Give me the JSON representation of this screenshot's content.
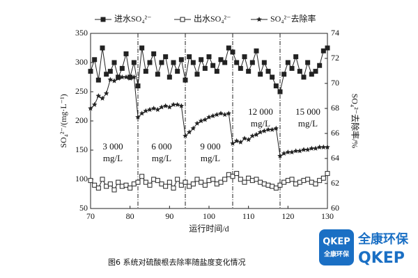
{
  "chart_data": {
    "type": "line",
    "xlabel": "运行时间/d",
    "ylabel": "SO₄²⁻/(mg·L⁻¹)",
    "y2label": "SO₄²⁻去除率/%",
    "x": [
      70,
      71,
      72,
      73,
      74,
      75,
      76,
      77,
      78,
      79,
      80,
      81,
      82,
      83,
      84,
      85,
      86,
      87,
      88,
      89,
      90,
      91,
      92,
      93,
      94,
      95,
      96,
      97,
      98,
      99,
      100,
      101,
      102,
      103,
      104,
      105,
      106,
      107,
      108,
      109,
      110,
      111,
      112,
      113,
      114,
      115,
      116,
      117,
      118,
      119,
      120,
      121,
      122,
      123,
      124,
      125,
      126,
      127,
      128,
      129,
      130
    ],
    "series": [
      {
        "name": "进水SO₄²⁻",
        "color": "#222222",
        "marker": "filled-square",
        "values": [
          285,
          305,
          270,
          325,
          280,
          285,
          300,
          275,
          290,
          315,
          275,
          300,
          260,
          325,
          285,
          300,
          315,
          280,
          300,
          310,
          275,
          300,
          285,
          305,
          270,
          310,
          300,
          280,
          305,
          290,
          310,
          295,
          285,
          305,
          300,
          325,
          318,
          300,
          290,
          310,
          285,
          300,
          320,
          280,
          300,
          285,
          275,
          260,
          250,
          280,
          300,
          290,
          310,
          285,
          275,
          300,
          280,
          285,
          295,
          320,
          325
        ]
      },
      {
        "name": "出水SO₄²⁻",
        "color": "#222222",
        "marker": "open-square",
        "values": [
          98,
          90,
          85,
          100,
          88,
          92,
          82,
          95,
          88,
          90,
          85,
          92,
          95,
          105,
          95,
          90,
          100,
          98,
          92,
          88,
          95,
          85,
          100,
          90,
          95,
          88,
          92,
          100,
          95,
          90,
          98,
          100,
          92,
          95,
          100,
          108,
          105,
          110,
          100,
          95,
          102,
          98,
          100,
          95,
          92,
          90,
          88,
          85,
          90,
          95,
          98,
          100,
          92,
          95,
          98,
          100,
          95,
          92,
          98,
          102,
          110
        ]
      },
      {
        "name": "SO₄²⁻去除率",
        "color": "#222222",
        "marker": "star",
        "axis": "y2",
        "values": [
          68.0,
          68.3,
          69.0,
          68.8,
          69.2,
          70.3,
          70.2,
          70.4,
          70.5,
          70.5,
          70.4,
          70.5,
          67.3,
          67.6,
          67.8,
          67.9,
          68.0,
          67.9,
          68.1,
          68.2,
          68.1,
          68.3,
          68.3,
          68.2,
          65.8,
          66.1,
          66.4,
          66.8,
          67.0,
          67.1,
          67.3,
          67.4,
          67.5,
          67.6,
          67.5,
          67.6,
          65.2,
          65.4,
          65.3,
          65.6,
          65.5,
          65.8,
          65.9,
          66.1,
          66.2,
          66.3,
          66.3,
          66.4,
          64.2,
          64.4,
          64.5,
          64.5,
          64.6,
          64.6,
          64.7,
          64.7,
          64.8,
          64.8,
          64.9,
          64.9,
          64.9
        ]
      }
    ],
    "xlim": [
      70,
      130
    ],
    "xticks": [
      70,
      80,
      90,
      100,
      110,
      120,
      130
    ],
    "ylim": [
      50,
      350
    ],
    "yticks": [
      50,
      100,
      150,
      200,
      250,
      300,
      350
    ],
    "y2lim": [
      60,
      74
    ],
    "y2ticks": [
      60,
      62,
      64,
      66,
      68,
      70,
      72,
      74
    ],
    "phase_boundaries": [
      82,
      94,
      106,
      118
    ],
    "annotations": [
      [
        "3 000",
        "mg/L"
      ],
      [
        "6 000",
        "mg/L"
      ],
      [
        "9 000",
        "mg/L"
      ],
      [
        "12 000",
        "mg/L"
      ],
      [
        "15 000",
        "mg/L"
      ]
    ],
    "legend": "top",
    "caption": "图6 系统对硫酸根去除率随盐度变化情况"
  },
  "logo": {
    "badge_top": "QKEP",
    "badge_bottom": "全康环保",
    "name": "全康环保",
    "brand": "QKEP"
  }
}
